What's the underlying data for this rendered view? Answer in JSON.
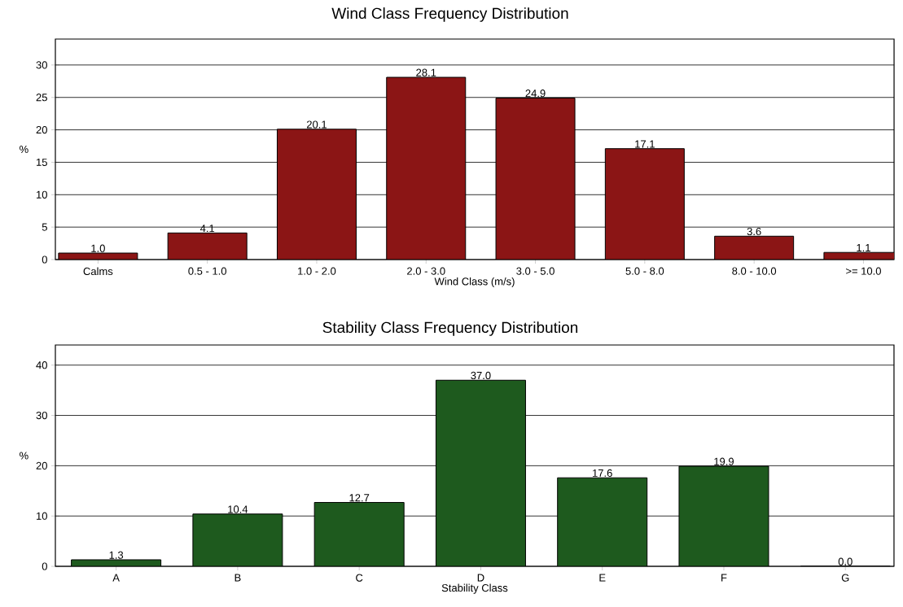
{
  "chart_data": [
    {
      "type": "bar",
      "title": "Wind Class Frequency Distribution",
      "xlabel": "Wind Class (m/s)",
      "ylabel": "%",
      "categories": [
        "Calms",
        "0.5 -  1.0",
        "1.0 -  2.0",
        "2.0 -  3.0",
        "3.0 -  5.0",
        "5.0 -  8.0",
        "8.0 - 10.0",
        ">= 10.0"
      ],
      "values": [
        1.0,
        4.1,
        20.1,
        28.1,
        24.9,
        17.1,
        3.6,
        1.1
      ],
      "value_labels": [
        "1.0",
        "4.1",
        "20.1",
        "28.1",
        "24.9",
        "17.1",
        "3.6",
        "1.1"
      ],
      "color": "#8b1515",
      "ylim": [
        0,
        34
      ],
      "yticks": [
        0,
        5,
        10,
        15,
        20,
        25,
        30
      ],
      "grid": "y"
    },
    {
      "type": "bar",
      "title": "Stability Class Frequency Distribution",
      "xlabel": "Stability Class",
      "ylabel": "%",
      "categories": [
        "A",
        "B",
        "C",
        "D",
        "E",
        "F",
        "G"
      ],
      "values": [
        1.3,
        10.4,
        12.7,
        37.0,
        17.6,
        19.9,
        0.0
      ],
      "value_labels": [
        "1.3",
        "10.4",
        "12.7",
        "37.0",
        "17.6",
        "19.9",
        "0.0"
      ],
      "color": "#1e5a1e",
      "ylim": [
        0,
        44
      ],
      "yticks": [
        0,
        10,
        20,
        30,
        40
      ],
      "grid": "y"
    }
  ]
}
